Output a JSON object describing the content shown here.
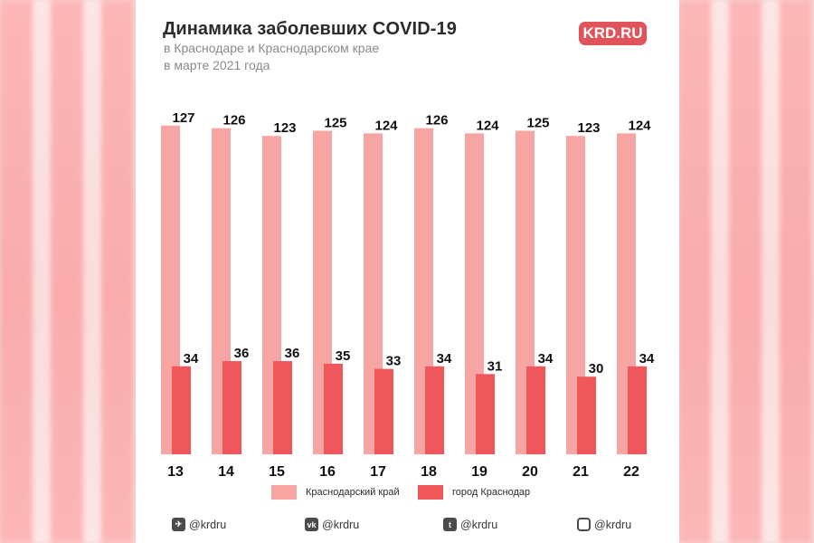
{
  "header": {
    "title": "Динамика заболевших COVID-19",
    "subtitle_line1": "в Краснодаре и Краснодарском крае",
    "subtitle_line2": "в марте 2021 года",
    "logo": "KRD.RU"
  },
  "colors": {
    "region": "#f7a5a3",
    "city": "#f0575a",
    "logo_bg": "#e0535a"
  },
  "chart_data": {
    "type": "bar",
    "categories": [
      "13",
      "14",
      "15",
      "16",
      "17",
      "18",
      "19",
      "20",
      "21",
      "22"
    ],
    "series": [
      {
        "name": "Краснодарский край",
        "values": [
          127,
          126,
          123,
          125,
          124,
          126,
          124,
          125,
          123,
          124
        ]
      },
      {
        "name": "город Краснодар",
        "values": [
          34,
          36,
          36,
          35,
          33,
          34,
          31,
          34,
          30,
          34
        ]
      }
    ],
    "legend_position": "bottom",
    "grid": false
  },
  "footer": {
    "social": [
      {
        "icon": "telegram-icon",
        "label": "@krdru"
      },
      {
        "icon": "vk-icon",
        "label": "@krdru"
      },
      {
        "icon": "twitter-icon",
        "label": "@krdru"
      },
      {
        "icon": "instagram-icon",
        "label": "@krdru"
      }
    ]
  }
}
